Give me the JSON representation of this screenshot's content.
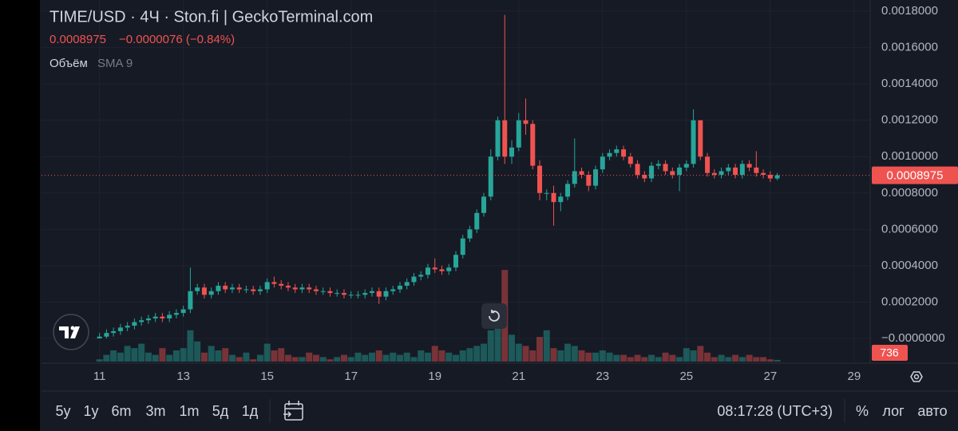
{
  "chart_data": {
    "type": "candlestick",
    "title": "TIME/USD · 4Ч · Ston.fi | GeckoTerminal.com",
    "last_price": "0.0008975",
    "change": "−0.0000076 (−0.84%)",
    "sma_label": "SMA 9",
    "last_price_label": "0.0008975",
    "up_color": "#26a69a",
    "down_color": "#ef5350",
    "grid": true,
    "candles": {
      "open": [
        0,
        1e-05,
        3e-05,
        4e-05,
        6e-05,
        7e-05,
        9e-05,
        0.0001,
        0.00011,
        0.00012,
        0.00011,
        0.00013,
        0.00014,
        0.00016,
        0.00026,
        0.00028,
        0.00024,
        0.00026,
        0.00029,
        0.00027,
        0.00028,
        0.00027,
        0.00027,
        0.00026,
        0.00027,
        0.00031,
        0.0003,
        0.00029,
        0.00028,
        0.00027,
        0.00028,
        0.00027,
        0.00026,
        0.00026,
        0.00025,
        0.00025,
        0.00024,
        0.00024,
        0.00024,
        0.00025,
        0.00026,
        0.00023,
        0.00026,
        0.00027,
        0.00029,
        0.00031,
        0.00034,
        0.00035,
        0.00039,
        0.00038,
        0.00037,
        0.00039,
        0.00046,
        0.00055,
        0.0006,
        0.00069,
        0.00078,
        0.001,
        0.0012,
        0.001,
        0.00105,
        0.0012,
        0.00118,
        0.00095,
        0.0008,
        0.0008,
        0.00075,
        0.00078,
        0.00085,
        0.00092,
        0.0009,
        0.00084,
        0.00093,
        0.001,
        0.00102,
        0.00104,
        0.001,
        0.00096,
        0.0009,
        0.00088,
        0.00095,
        0.00096,
        0.00092,
        0.0009,
        0.00094,
        0.00096,
        0.0012,
        0.001,
        0.00091,
        0.0009,
        0.00092,
        0.00094,
        0.0009,
        0.00096,
        0.00094,
        0.00091,
        0.0009,
        0.00088
      ],
      "high": [
        3e-05,
        5e-05,
        6e-05,
        8e-05,
        9e-05,
        0.00011,
        0.00012,
        0.00013,
        0.00014,
        0.00014,
        0.00015,
        0.00016,
        0.00018,
        0.00039,
        0.0003,
        0.0003,
        0.00028,
        0.00031,
        0.00031,
        0.0003,
        0.0003,
        0.00029,
        0.00029,
        0.00029,
        0.00033,
        0.00034,
        0.00032,
        0.00031,
        0.0003,
        0.0003,
        0.0003,
        0.00029,
        0.00028,
        0.00028,
        0.00027,
        0.00027,
        0.00026,
        0.00026,
        0.00027,
        0.00028,
        0.00028,
        0.00028,
        0.00029,
        0.00031,
        0.00033,
        0.00036,
        0.00037,
        0.00041,
        0.00044,
        0.0004,
        0.00041,
        0.00048,
        0.00057,
        0.00062,
        0.00071,
        0.0008,
        0.00104,
        0.00122,
        0.00178,
        0.00109,
        0.00124,
        0.00132,
        0.0012,
        0.00098,
        0.00082,
        0.00084,
        0.0008,
        0.00087,
        0.0011,
        0.00094,
        0.00092,
        0.00095,
        0.00102,
        0.00104,
        0.00106,
        0.00106,
        0.00102,
        0.00098,
        0.00092,
        0.00097,
        0.00098,
        0.00098,
        0.00094,
        0.00096,
        0.00098,
        0.00126,
        0.0012,
        0.00102,
        0.00093,
        0.00094,
        0.00096,
        0.00096,
        0.00098,
        0.00098,
        0.00103,
        0.00093,
        0.00092,
        0.00091
      ],
      "low": [
        0,
        0,
        1e-05,
        2e-05,
        4e-05,
        5e-05,
        7e-05,
        8e-05,
        9e-05,
        9e-05,
        9e-05,
        0.00011,
        0.00012,
        0.00014,
        0.00024,
        0.00022,
        0.00022,
        0.00024,
        0.00025,
        0.00025,
        0.00025,
        0.00025,
        0.00024,
        0.00024,
        0.00025,
        0.00028,
        0.00027,
        0.00026,
        0.00025,
        0.00025,
        0.00025,
        0.00024,
        0.00024,
        0.00023,
        0.00023,
        0.00022,
        0.00022,
        0.00022,
        0.00022,
        0.00023,
        0.00019,
        0.00021,
        0.00024,
        0.00025,
        0.00027,
        0.00029,
        0.00032,
        0.00033,
        0.00036,
        0.00035,
        0.00035,
        0.00037,
        0.00044,
        0.00053,
        0.00058,
        0.00067,
        0.00076,
        0.00098,
        0.00096,
        0.00096,
        0.00103,
        0.00112,
        0.00093,
        0.00076,
        0.00076,
        0.00062,
        0.0007,
        0.00076,
        0.00083,
        0.00088,
        0.00081,
        0.00082,
        0.00091,
        0.00098,
        0.001,
        0.00098,
        0.00094,
        0.00088,
        0.00086,
        0.00086,
        0.00093,
        0.0009,
        0.00088,
        0.00081,
        0.00092,
        0.00094,
        0.00098,
        0.00089,
        0.00088,
        0.00088,
        0.0009,
        0.00088,
        0.00088,
        0.00092,
        0.00089,
        0.00088,
        0.00086,
        0.00087
      ],
      "close": [
        1e-05,
        3e-05,
        4e-05,
        6e-05,
        7e-05,
        9e-05,
        0.0001,
        0.00011,
        0.00012,
        0.00011,
        0.00013,
        0.00014,
        0.00016,
        0.00026,
        0.00028,
        0.00024,
        0.00026,
        0.00029,
        0.00027,
        0.00028,
        0.00027,
        0.00027,
        0.00026,
        0.00027,
        0.00031,
        0.0003,
        0.00029,
        0.00028,
        0.00027,
        0.00028,
        0.00027,
        0.00026,
        0.00026,
        0.00025,
        0.00025,
        0.00024,
        0.00024,
        0.00024,
        0.00025,
        0.00026,
        0.00023,
        0.00026,
        0.00027,
        0.00029,
        0.00031,
        0.00034,
        0.00035,
        0.00039,
        0.00038,
        0.00037,
        0.00039,
        0.00046,
        0.00055,
        0.0006,
        0.00069,
        0.00078,
        0.001,
        0.0012,
        0.001,
        0.00105,
        0.0012,
        0.00118,
        0.00095,
        0.0008,
        0.0008,
        0.00075,
        0.00078,
        0.00085,
        0.00092,
        0.0009,
        0.00084,
        0.00093,
        0.001,
        0.00102,
        0.00104,
        0.001,
        0.00096,
        0.0009,
        0.00088,
        0.00095,
        0.00096,
        0.00092,
        0.0009,
        0.00094,
        0.00096,
        0.0012,
        0.001,
        0.00091,
        0.0009,
        0.00092,
        0.00094,
        0.0009,
        0.00096,
        0.00094,
        0.00091,
        0.0009,
        0.00088,
        0.0008975
      ]
    },
    "volume": {
      "name": "Объём",
      "values": [
        1000,
        3000,
        5000,
        4000,
        7000,
        6000,
        8000,
        4000,
        3000,
        6000,
        3000,
        5000,
        6000,
        14000,
        9000,
        4000,
        7000,
        5000,
        6000,
        3000,
        2000,
        4000,
        1000,
        3000,
        8000,
        5000,
        6000,
        3000,
        2000,
        2000,
        4000,
        3000,
        2000,
        1000,
        2000,
        3000,
        2000,
        4000,
        3000,
        4000,
        5000,
        3000,
        4000,
        3000,
        4000,
        2000,
        5000,
        4000,
        7000,
        5000,
        4000,
        3000,
        5000,
        6000,
        7000,
        8000,
        14000,
        16000,
        41000,
        12000,
        8000,
        7000,
        5000,
        11000,
        14000,
        6000,
        5000,
        8000,
        7000,
        5000,
        4000,
        4000,
        5000,
        4000,
        3000,
        3000,
        2000,
        3000,
        2000,
        3000,
        2000,
        4000,
        3000,
        2000,
        6000,
        5000,
        7000,
        4000,
        2000,
        3000,
        2000,
        3000,
        2000,
        3000,
        2000,
        2000,
        1000,
        736
      ],
      "ylim": [
        0,
        50000
      ]
    },
    "xlim": [
      -8.3,
      110.3
    ],
    "xticks": [
      {
        "value": 0,
        "label": "11"
      },
      {
        "value": 12,
        "label": "13"
      },
      {
        "value": 24,
        "label": "15"
      },
      {
        "value": 36,
        "label": "17"
      },
      {
        "value": 48,
        "label": "19"
      },
      {
        "value": 60,
        "label": "21"
      },
      {
        "value": 72,
        "label": "23"
      },
      {
        "value": 84,
        "label": "25"
      },
      {
        "value": 96,
        "label": "27"
      },
      {
        "value": 108,
        "label": "29"
      }
    ],
    "ylim": [
      -0.000136,
      0.0018615
    ],
    "yticks": [
      {
        "value": 0,
        "label": "−0.0000000"
      },
      {
        "value": 0.0002,
        "label": "0.0002000"
      },
      {
        "value": 0.0004,
        "label": "0.0004000"
      },
      {
        "value": 0.0006,
        "label": "0.0006000"
      },
      {
        "value": 0.0008,
        "label": "0.0008000"
      },
      {
        "value": 0.001,
        "label": "0.0010000"
      },
      {
        "value": 0.0012,
        "label": "0.0012000"
      },
      {
        "value": 0.0014,
        "label": "0.0014000"
      },
      {
        "value": 0.0016,
        "label": "0.0016000"
      },
      {
        "value": 0.0018,
        "label": "0.0018000"
      }
    ]
  },
  "toolbar": {
    "ranges": [
      "5y",
      "1y",
      "6m",
      "3m",
      "1m",
      "5д",
      "1д"
    ],
    "clock": "08:17:28 (UTC+3)",
    "percent": "%",
    "log": "лог",
    "auto": "авто"
  }
}
